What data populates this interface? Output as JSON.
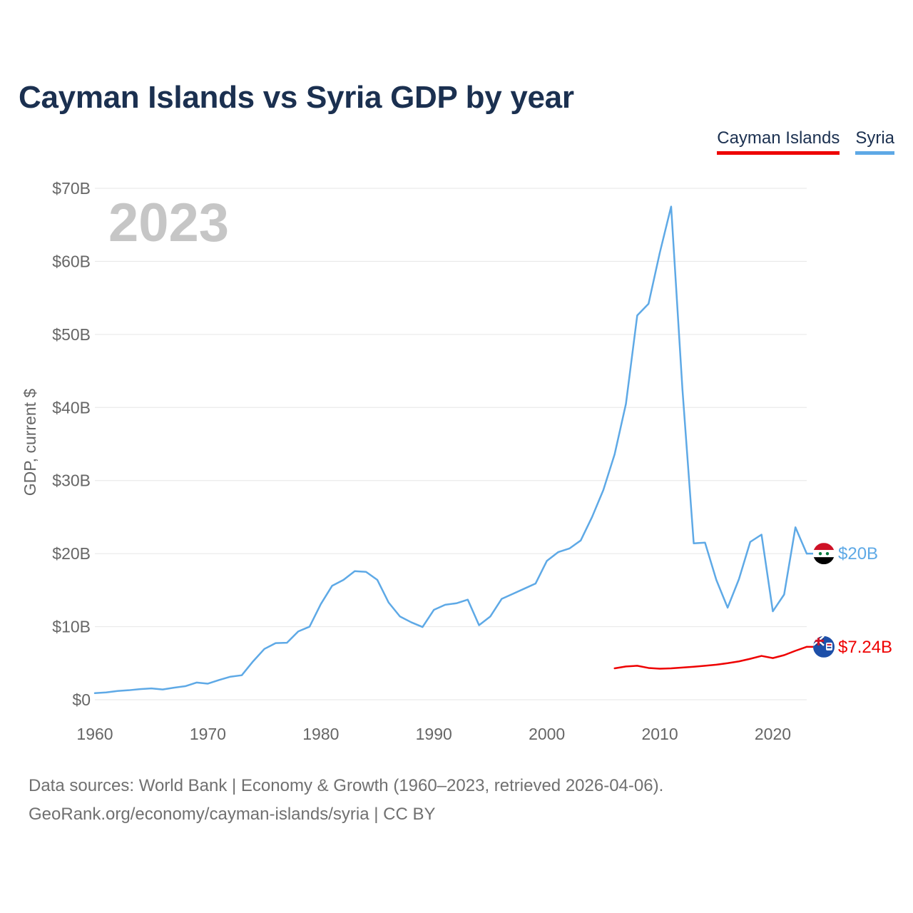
{
  "title": "Cayman Islands vs Syria GDP by year",
  "legend": [
    {
      "label": "Cayman Islands",
      "color": "#ee0000"
    },
    {
      "label": "Syria",
      "color": "#5ea9e6"
    }
  ],
  "footer": {
    "line1": "Data sources: World Bank | Economy & Growth (1960–2023, retrieved 2026-04-06).",
    "line2": "GeoRank.org/economy/cayman-islands/syria | CC BY"
  },
  "chart_data": {
    "type": "line",
    "title": "Cayman Islands vs Syria GDP by year",
    "year_label": "2023",
    "xlabel": "",
    "ylabel": "GDP, current $",
    "xlim": [
      1960,
      2023
    ],
    "ylim": [
      0,
      70
    ],
    "x_ticks": [
      1960,
      1970,
      1980,
      1990,
      2000,
      2010,
      2020
    ],
    "y_ticks": [
      {
        "value": 0,
        "label": "$0"
      },
      {
        "value": 10,
        "label": "$10B"
      },
      {
        "value": 20,
        "label": "$20B"
      },
      {
        "value": 30,
        "label": "$30B"
      },
      {
        "value": 40,
        "label": "$40B"
      },
      {
        "value": 50,
        "label": "$50B"
      },
      {
        "value": 60,
        "label": "$60B"
      },
      {
        "value": 70,
        "label": "$70B"
      }
    ],
    "units": "billions of current US$",
    "grid": true,
    "legend_position": "top-right",
    "series": [
      {
        "name": "Syria",
        "color": "#5ea9e6",
        "end_label": "$20B",
        "x": [
          1960,
          1961,
          1962,
          1963,
          1964,
          1965,
          1966,
          1967,
          1968,
          1969,
          1970,
          1971,
          1972,
          1973,
          1974,
          1975,
          1976,
          1977,
          1978,
          1979,
          1980,
          1981,
          1982,
          1983,
          1984,
          1985,
          1986,
          1987,
          1988,
          1989,
          1990,
          1991,
          1992,
          1993,
          1994,
          1995,
          1996,
          1997,
          1998,
          1999,
          2000,
          2001,
          2002,
          2003,
          2004,
          2005,
          2006,
          2007,
          2008,
          2009,
          2010,
          2011,
          2012,
          2013,
          2014,
          2015,
          2016,
          2017,
          2018,
          2019,
          2020,
          2021,
          2022,
          2023
        ],
        "values": [
          0.9,
          1.0,
          1.2,
          1.3,
          1.45,
          1.55,
          1.4,
          1.65,
          1.85,
          2.35,
          2.2,
          2.7,
          3.15,
          3.35,
          5.25,
          6.95,
          7.75,
          7.8,
          9.35,
          10.0,
          13.1,
          15.6,
          16.4,
          17.6,
          17.5,
          16.4,
          13.3,
          11.4,
          10.6,
          9.95,
          12.3,
          13.0,
          13.2,
          13.7,
          10.2,
          11.4,
          13.8,
          14.5,
          15.2,
          15.9,
          19.0,
          20.2,
          20.7,
          21.8,
          25.0,
          28.7,
          33.6,
          40.5,
          52.6,
          54.2,
          61.2,
          67.5,
          42.5,
          21.4,
          21.5,
          16.4,
          12.6,
          16.5,
          21.6,
          22.6,
          12.1,
          14.4,
          23.6,
          20.0
        ]
      },
      {
        "name": "Cayman Islands",
        "color": "#ee0000",
        "end_label": "$7.24B",
        "x": [
          2006,
          2007,
          2008,
          2009,
          2010,
          2011,
          2012,
          2013,
          2014,
          2015,
          2016,
          2017,
          2018,
          2019,
          2020,
          2021,
          2022,
          2023
        ],
        "values": [
          4.3,
          4.55,
          4.65,
          4.35,
          4.25,
          4.3,
          4.4,
          4.52,
          4.65,
          4.8,
          5.0,
          5.25,
          5.6,
          6.0,
          5.7,
          6.1,
          6.7,
          7.24
        ]
      }
    ]
  }
}
